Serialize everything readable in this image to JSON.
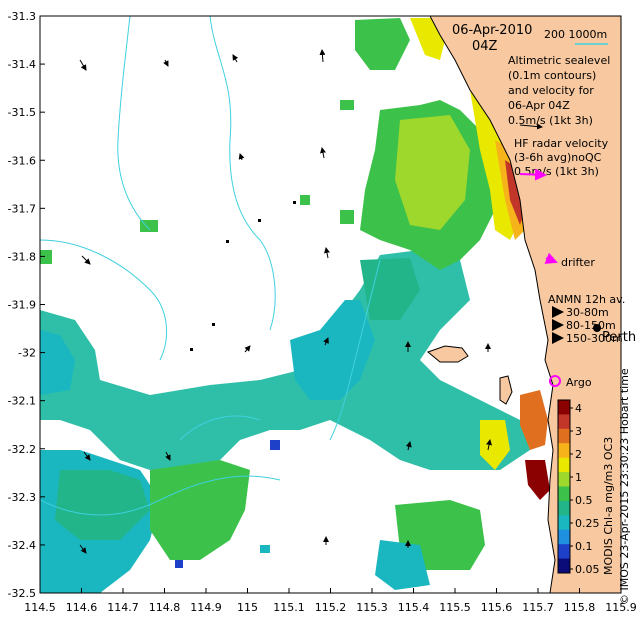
{
  "chart_data": {
    "type": "map",
    "title": "06-Apr-2010 04Z",
    "x_ticks": [
      "114.5",
      "114.6",
      "114.7",
      "114.8",
      "114.9",
      "115",
      "115.1",
      "115.2",
      "115.3",
      "115.4",
      "115.5",
      "115.6",
      "115.7",
      "115.8",
      "115.9"
    ],
    "y_ticks": [
      "-31.3",
      "-31.4",
      "-31.5",
      "-31.6",
      "-31.7",
      "-31.8",
      "-31.9",
      "-32",
      "-32.1",
      "-32.2",
      "-32.3",
      "-32.4",
      "-32.5"
    ],
    "xlim": [
      114.5,
      115.9
    ],
    "ylim": [
      -32.5,
      -31.3
    ],
    "legend": {
      "date": "06-Apr-2010",
      "time": "04Z",
      "scale_bar": "200   1000m",
      "altimetric": [
        "Altimetric sealevel",
        "(0.1m contours)",
        "and velocity for",
        "06-Apr 04Z",
        "0.5m/s (1kt 3h)"
      ],
      "hf_radar": [
        "HF radar velocity",
        "(3-6h avg)noQC",
        "0.5m/s (1kt 3h)"
      ],
      "drifter": "drifter",
      "anmn_title": "ANMN 12h av.",
      "anmn_items": [
        "30-80m",
        "80-150m",
        "150-300m"
      ],
      "city": "Perth",
      "argo": "Argo"
    },
    "colorbar": {
      "ticks": [
        "4",
        "3",
        "2",
        "1",
        "0.5",
        "0.25",
        "0.1",
        "0.05"
      ],
      "colors": [
        "#8b0000",
        "#c2362a",
        "#e0701f",
        "#f6b41a",
        "#e8e800",
        "#9ed82d",
        "#3cc24a",
        "#22b58a",
        "#1ab7c0",
        "#1f8fe0",
        "#1e3fc8",
        "#0b0b7a"
      ],
      "label": "MODIS Chl-a mg/m3 OC3"
    },
    "credit": "© IMOS 23-Apr-2015 23:30:23 Hobart time",
    "anmn_colors": [
      "#0000ff",
      "#00c8c8",
      "#ff0000"
    ],
    "land_color": "#f8c9a0",
    "contour_color": "#3fd0e0",
    "drifter_color": "#ff00ff",
    "scale_bar_color": "#3fd0e0"
  }
}
